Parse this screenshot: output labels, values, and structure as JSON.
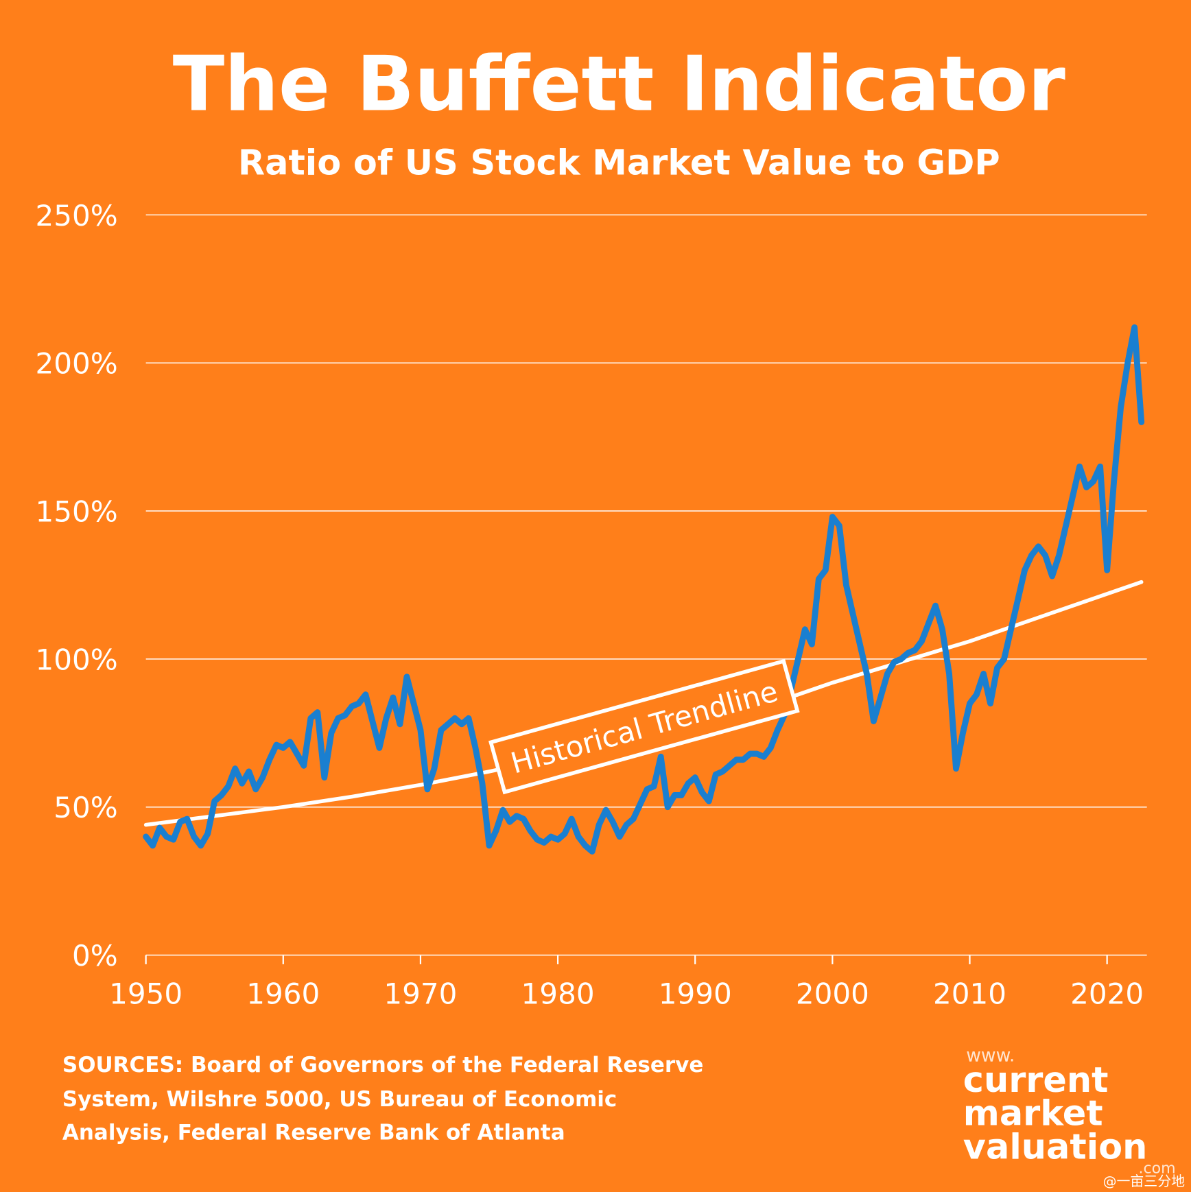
{
  "chart_data": {
    "type": "line",
    "title": "The Buffett Indicator",
    "subtitle": "Ratio of US Stock Market Value to GDP",
    "annotation": "Historical Trendline",
    "source": [
      "SOURCES: Board of Governors of the Federal Reserve",
      "System, Wilshre 5000, US Bureau of Economic",
      "Analysis, Federal Reserve Bank of Atlanta"
    ],
    "logo": [
      "www.",
      "current",
      "market",
      "valuation",
      ".com"
    ],
    "watermark": "@一亩三分地",
    "xlim": [
      1950,
      2022.9
    ],
    "xticks": [
      1950,
      1960,
      1970,
      1980,
      1990,
      2000,
      2010,
      2020
    ],
    "ylim": [
      0,
      250
    ],
    "yticks": [
      {
        "value": 0,
        "label": "0%"
      },
      {
        "value": 50,
        "label": "50%"
      },
      {
        "value": 100,
        "label": "100%"
      },
      {
        "value": 150,
        "label": "150%"
      },
      {
        "value": 200,
        "label": "200%"
      },
      {
        "value": 250,
        "label": "250%"
      }
    ],
    "grid": true,
    "series": [
      {
        "name": "Buffett Indicator",
        "color": "#1a7fd0",
        "x": [
          1950,
          1950.5,
          1951,
          1951.5,
          1952,
          1952.5,
          1953,
          1953.5,
          1954,
          1954.5,
          1955,
          1955.5,
          1956,
          1956.5,
          1957,
          1957.5,
          1958,
          1958.5,
          1959,
          1959.5,
          1960,
          1960.5,
          1961,
          1961.5,
          1962,
          1962.5,
          1963,
          1963.5,
          1964,
          1964.5,
          1965,
          1965.5,
          1966,
          1966.5,
          1967,
          1967.5,
          1968,
          1968.5,
          1969,
          1969.5,
          1970,
          1970.5,
          1971,
          1971.5,
          1972,
          1972.5,
          1973,
          1973.5,
          1974,
          1974.5,
          1975,
          1975.5,
          1976,
          1976.5,
          1977,
          1977.5,
          1978,
          1978.5,
          1979,
          1979.5,
          1980,
          1980.5,
          1981,
          1981.5,
          1982,
          1982.5,
          1983,
          1983.5,
          1984,
          1984.5,
          1985,
          1985.5,
          1986,
          1986.5,
          1987,
          1987.5,
          1988,
          1988.5,
          1989,
          1989.5,
          1990,
          1990.5,
          1991,
          1991.5,
          1992,
          1992.5,
          1993,
          1993.5,
          1994,
          1994.5,
          1995,
          1995.5,
          1996,
          1996.5,
          1997,
          1997.5,
          1998,
          1998.5,
          1999,
          1999.5,
          2000,
          2000.5,
          2001,
          2001.5,
          2002,
          2002.5,
          2003,
          2003.5,
          2004,
          2004.5,
          2005,
          2005.5,
          2006,
          2006.5,
          2007,
          2007.5,
          2008,
          2008.5,
          2009,
          2009.5,
          2010,
          2010.5,
          2011,
          2011.5,
          2012,
          2012.5,
          2013,
          2013.5,
          2014,
          2014.5,
          2015,
          2015.5,
          2016,
          2016.5,
          2017,
          2017.5,
          2018,
          2018.5,
          2019,
          2019.5,
          2020,
          2020.5,
          2021,
          2021.5,
          2022,
          2022.5
        ],
        "values": [
          40,
          37,
          43,
          40,
          39,
          45,
          46,
          40,
          37,
          41,
          52,
          54,
          57,
          63,
          58,
          62,
          56,
          60,
          66,
          71,
          70,
          72,
          68,
          64,
          80,
          82,
          60,
          75,
          80,
          81,
          84,
          85,
          88,
          79,
          70,
          80,
          87,
          78,
          94,
          85,
          76,
          56,
          63,
          76,
          78,
          80,
          78,
          80,
          70,
          58,
          37,
          42,
          49,
          45,
          47,
          46,
          42,
          39,
          38,
          40,
          39,
          41,
          46,
          40,
          37,
          35,
          44,
          49,
          45,
          40,
          44,
          46,
          51,
          56,
          57,
          67,
          50,
          54,
          54,
          58,
          60,
          55,
          52,
          61,
          62,
          64,
          66,
          66,
          68,
          68,
          67,
          70,
          76,
          81,
          90,
          100,
          110,
          105,
          127,
          130,
          148,
          145,
          125,
          115,
          105,
          95,
          79,
          87,
          95,
          99,
          100,
          102,
          103,
          106,
          112,
          118,
          110,
          95,
          63,
          75,
          85,
          88,
          95,
          85,
          97,
          100,
          110,
          120,
          130,
          135,
          138,
          135,
          128,
          135,
          145,
          155,
          165,
          158,
          160,
          165,
          130,
          160,
          185,
          200,
          212,
          180
        ]
      },
      {
        "name": "Historical Trendline",
        "color": "#ffffff",
        "x": [
          1950,
          1955,
          1960,
          1965,
          1970,
          1975,
          1980,
          1985,
          1990,
          1995,
          2000,
          2005,
          2010,
          2015,
          2020,
          2022.5
        ],
        "values": [
          44,
          47,
          50,
          53.5,
          57.5,
          62,
          67,
          72,
          77,
          84,
          92,
          99,
          106,
          114,
          122,
          126
        ]
      }
    ]
  }
}
